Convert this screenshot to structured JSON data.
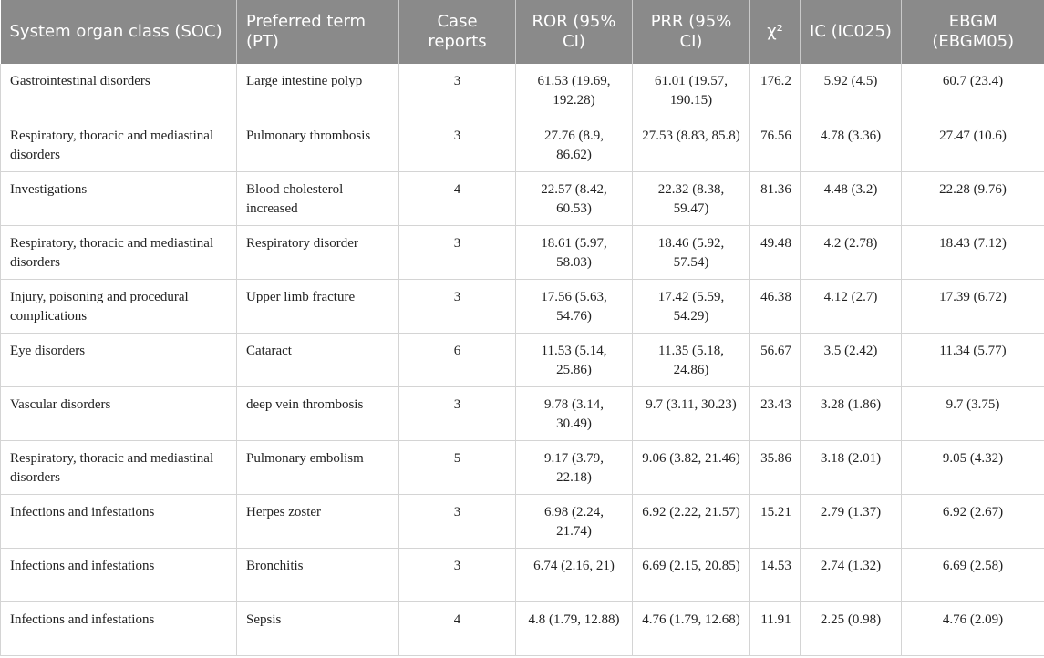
{
  "table": {
    "headers": [
      "System organ class (SOC)",
      "Preferred term (PT)",
      "Case reports",
      "ROR (95% CI)",
      "PRR (95% CI)",
      "χ²",
      "IC (IC025)",
      "EBGM (EBGM05)"
    ],
    "rows": [
      [
        "Gastrointestinal disorders",
        "Large intestine polyp",
        "3",
        "61.53 (19.69, 192.28)",
        "61.01 (19.57, 190.15)",
        "176.2",
        "5.92 (4.5)",
        "60.7 (23.4)"
      ],
      [
        "Respiratory, thoracic and mediastinal disorders",
        "Pulmonary thrombosis",
        "3",
        "27.76 (8.9, 86.62)",
        "27.53 (8.83, 85.8)",
        "76.56",
        "4.78 (3.36)",
        "27.47 (10.6)"
      ],
      [
        "Investigations",
        "Blood cholesterol increased",
        "4",
        "22.57 (8.42, 60.53)",
        "22.32 (8.38, 59.47)",
        "81.36",
        "4.48 (3.2)",
        "22.28 (9.76)"
      ],
      [
        "Respiratory, thoracic and mediastinal disorders",
        "Respiratory disorder",
        "3",
        "18.61 (5.97, 58.03)",
        "18.46 (5.92, 57.54)",
        "49.48",
        "4.2 (2.78)",
        "18.43 (7.12)"
      ],
      [
        "Injury, poisoning and procedural complications",
        "Upper limb fracture",
        "3",
        "17.56 (5.63, 54.76)",
        "17.42 (5.59, 54.29)",
        "46.38",
        "4.12 (2.7)",
        "17.39 (6.72)"
      ],
      [
        "Eye disorders",
        "Cataract",
        "6",
        "11.53 (5.14, 25.86)",
        "11.35 (5.18, 24.86)",
        "56.67",
        "3.5 (2.42)",
        "11.34 (5.77)"
      ],
      [
        "Vascular disorders",
        "deep vein thrombosis",
        "3",
        "9.78 (3.14, 30.49)",
        "9.7 (3.11, 30.23)",
        "23.43",
        "3.28 (1.86)",
        "9.7 (3.75)"
      ],
      [
        "Respiratory, thoracic and mediastinal disorders",
        "Pulmonary embolism",
        "5",
        "9.17 (3.79, 22.18)",
        "9.06 (3.82, 21.46)",
        "35.86",
        "3.18 (2.01)",
        "9.05 (4.32)"
      ],
      [
        "Infections and infestations",
        "Herpes zoster",
        "3",
        "6.98 (2.24, 21.74)",
        "6.92 (2.22, 21.57)",
        "15.21",
        "2.79 (1.37)",
        "6.92 (2.67)"
      ],
      [
        "Infections and infestations",
        "Bronchitis",
        "3",
        "6.74 (2.16, 21)",
        "6.69 (2.15, 20.85)",
        "14.53",
        "2.74 (1.32)",
        "6.69 (2.58)"
      ],
      [
        "Infections and infestations",
        "Sepsis",
        "4",
        "4.8 (1.79, 12.88)",
        "4.76 (1.79, 12.68)",
        "11.91",
        "2.25 (0.98)",
        "4.76 (2.09)"
      ]
    ]
  }
}
